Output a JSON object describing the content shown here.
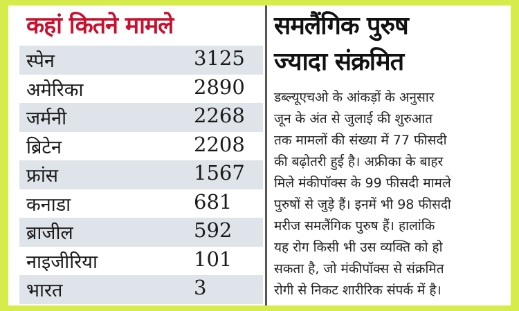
{
  "table": {
    "title": "कहां कितने मामले",
    "rows": [
      {
        "country": "स्पेन",
        "count": "3125"
      },
      {
        "country": "अमेरिका",
        "count": "2890"
      },
      {
        "country": "जर्मनी",
        "count": "2268"
      },
      {
        "country": "ब्रिटेन",
        "count": "2208"
      },
      {
        "country": "फ्रांस",
        "count": "1567"
      },
      {
        "country": "कनाडा",
        "count": "681"
      },
      {
        "country": "ब्राजील",
        "count": "592"
      },
      {
        "country": "नाइजीरिया",
        "count": "101"
      },
      {
        "country": "भारत",
        "count": "3"
      }
    ]
  },
  "article": {
    "headline_lines": [
      "समलैंगिक पुरुष",
      "ज्यादा संक्रमित"
    ],
    "body_lines": [
      "डब्ल्यूएचओ के आंकड़ों के अनुसार",
      "जून के अंत से जुलाई की शुरुआत",
      "तक मामलों की संख्या में 77 फीसदी",
      "की बढ़ोतरी हुई है। अफ्रीका के बाहर",
      "मिले मंकीपॉक्स के 99 फीसदी मामले",
      "पुरुषों से जुड़े हैं। इनमें भी 98 फीसदी",
      "मरीज समलैंगिक पुरुष हैं। हालांकि",
      "यह रोग किसी भी उस व्यक्ति को हो",
      "सकता है, जो मंकीपॉक्स से संक्रमित",
      "रोगी से निकट शारीरिक संपर्क में है।"
    ]
  },
  "colors": {
    "border": "#d6ec4a",
    "title_red": "#c8102e",
    "row_shade": "#dfe3ea"
  }
}
